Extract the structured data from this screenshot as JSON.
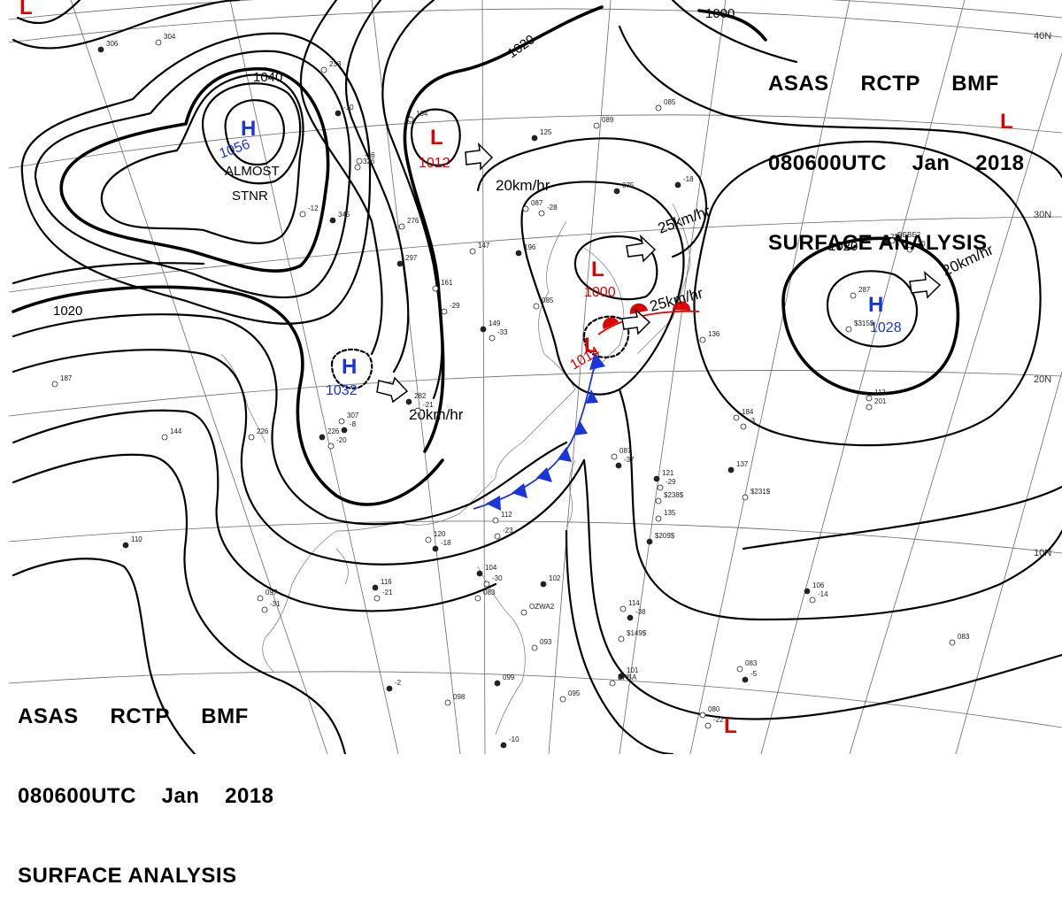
{
  "title": {
    "line1": [
      "ASAS",
      "RCTP",
      "BMF"
    ],
    "line2": [
      "080600UTC",
      "Jan",
      "2018"
    ],
    "line3": "SURFACE ANALYSIS"
  },
  "colors": {
    "high": "#1a35d8",
    "low": "#e00000",
    "isobar": "#000000",
    "cold_front": "#1a35d8",
    "warm_front": "#e00000"
  },
  "latitude_labels": [
    "40N",
    "30N",
    "20N",
    "10N"
  ],
  "isobar_labels": [
    "1040",
    "1020",
    "1020",
    "1020",
    "1000"
  ],
  "systems": {
    "high_mongolia": {
      "letter": "H",
      "pressure": "1056"
    },
    "high_south_china": {
      "letter": "H",
      "pressure": "1032"
    },
    "high_pacific": {
      "letter": "H",
      "pressure": "1028"
    },
    "low_north": {
      "letter": "L",
      "pressure": "1012"
    },
    "low_japan": {
      "letter": "L",
      "pressure": "1000"
    },
    "low_coast": {
      "letter": "L",
      "pressure": "1014"
    },
    "low_far_east": {
      "letter": "L"
    },
    "low_south": {
      "letter": "L"
    }
  },
  "annotations": {
    "almost": "ALMOST",
    "stnr": "STNR"
  },
  "motion_labels": {
    "north_low": "20km/hr",
    "japan_low": "25km/hr",
    "coast_low": "25km/hr",
    "china_high": "20km/hr",
    "pacific_high": "20km/hr"
  },
  "station_text": [
    "306",
    "304",
    "233",
    "-10",
    "-16",
    "164",
    "125",
    "089",
    "085",
    "345",
    "276",
    "-12",
    "297",
    "326",
    "147",
    "196",
    "161",
    "-29",
    "149",
    "-33",
    "085",
    "075",
    "087",
    "-28",
    "-18",
    "136",
    "287",
    "226",
    "-20",
    "226",
    "282",
    "-21",
    "307",
    "-8",
    "187",
    "144",
    "110",
    "097",
    "-31",
    "116",
    "-21",
    "120",
    "-18",
    "112",
    "-23",
    "121",
    "-29",
    "087",
    "-37",
    "184",
    "-3",
    "137",
    "135",
    "$238$",
    "$209$",
    "$231$",
    "$315$",
    "104",
    "-30",
    "083",
    "102",
    "OZWA2",
    "114",
    "-38",
    "$149$",
    "093",
    "099",
    "098",
    "095",
    "101",
    "BPBA",
    "083",
    "-5",
    "080",
    "-22",
    "106",
    "-14",
    "083",
    "-2",
    "112",
    "201",
    "226",
    "-20",
    "DEBE2",
    "-10",
    "-15",
    "086"
  ]
}
